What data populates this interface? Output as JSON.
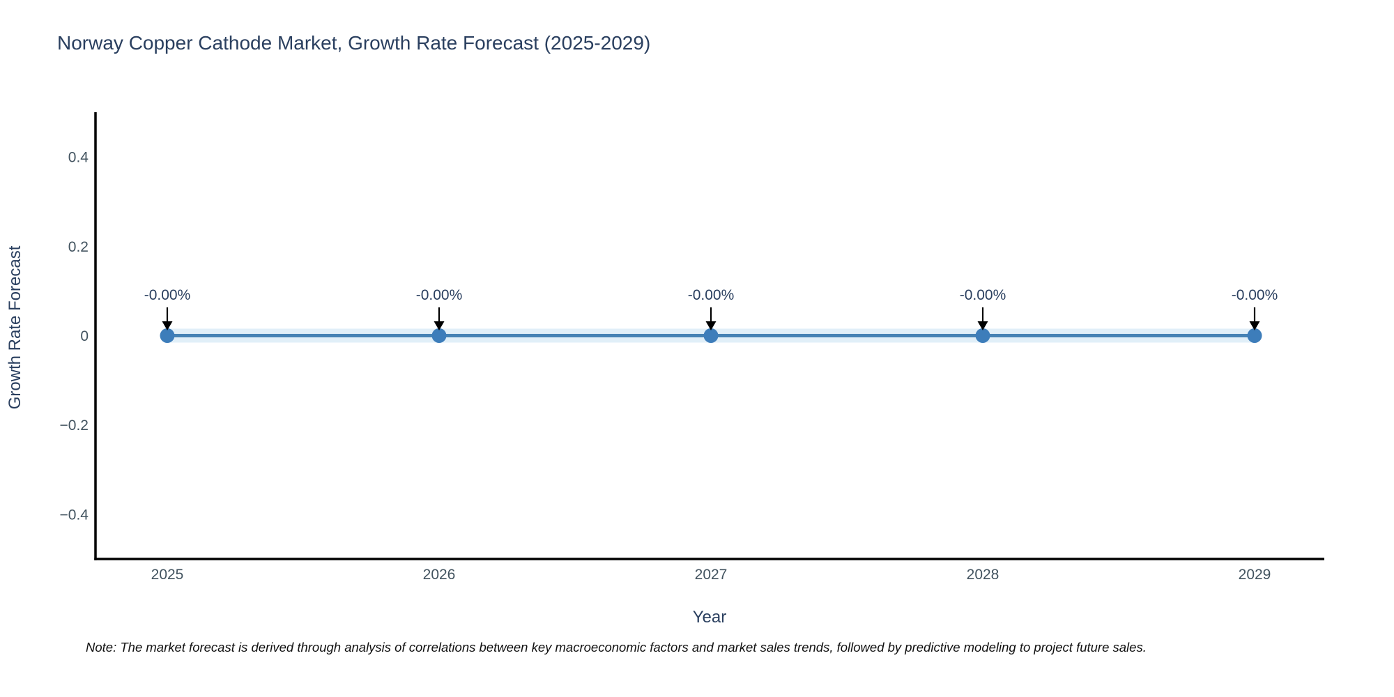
{
  "title": "Norway Copper Cathode Market, Growth Rate Forecast (2025-2029)",
  "note": "Note: The market forecast is derived through analysis of correlations between key macroeconomic factors and market sales trends, followed by predictive modeling to project future sales.",
  "chart_data": {
    "type": "line",
    "title": "Norway Copper Cathode Market, Growth Rate Forecast (2025-2029)",
    "xlabel": "Year",
    "ylabel": "Growth Rate Forecast",
    "x": [
      2025,
      2026,
      2027,
      2028,
      2029
    ],
    "categories": [
      "2025",
      "2026",
      "2027",
      "2028",
      "2029"
    ],
    "series": [
      {
        "name": "Growth Rate Forecast",
        "values": [
          0,
          0,
          0,
          0,
          0
        ],
        "point_labels": [
          "-0.00%",
          "-0.00%",
          "-0.00%",
          "-0.00%",
          "-0.00%"
        ]
      }
    ],
    "ylim": [
      -0.5,
      0.5
    ],
    "yticks": [
      {
        "value": 0.4,
        "label": "0.4"
      },
      {
        "value": 0.2,
        "label": "0.2"
      },
      {
        "value": 0,
        "label": "0"
      },
      {
        "value": -0.2,
        "label": "−0.2"
      },
      {
        "value": -0.4,
        "label": "−0.4"
      }
    ],
    "grid": false,
    "legend": "none",
    "colors": {
      "line": "#4682b4",
      "marker": "#3d7dba",
      "band": "#e1eff8",
      "axis": "#000000",
      "arrow": "#000000",
      "title_text": "#2a3f5f",
      "tick_text": "#42535f",
      "note_text": "#111111"
    }
  }
}
